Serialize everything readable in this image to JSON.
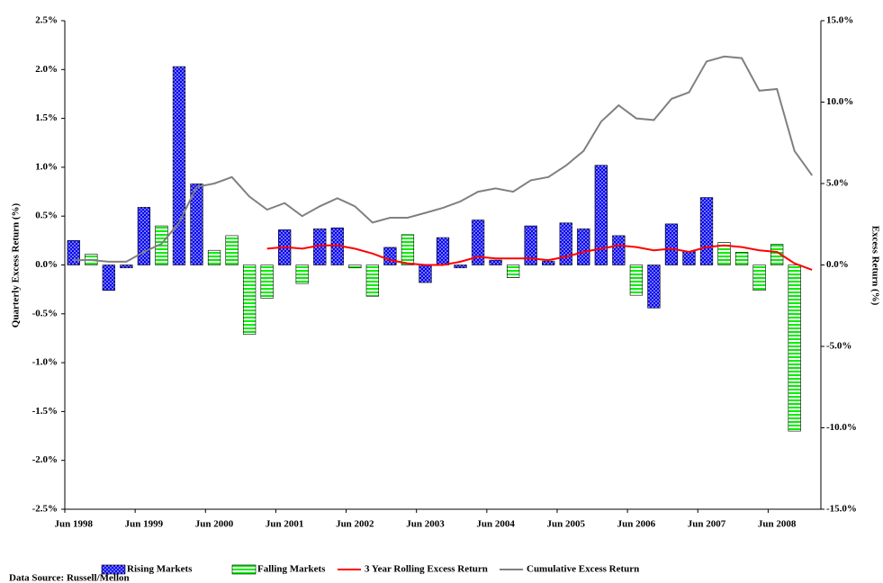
{
  "chart_data": {
    "type": "bar",
    "y_label": "Quarterly Excess Return (%)",
    "y2_label": "Excess Return (%)",
    "source": "Data Source: Russell/Mellon",
    "categories": [
      "Jun 1998",
      null,
      null,
      null,
      "Jun 1999",
      null,
      null,
      null,
      "Jun 2000",
      null,
      null,
      null,
      "Jun 2001",
      null,
      null,
      null,
      "Jun 2002",
      null,
      null,
      null,
      "Jun 2003",
      null,
      null,
      null,
      "Jun 2004",
      null,
      null,
      null,
      "Jun 2005",
      null,
      null,
      null,
      "Jun 2006",
      null,
      null,
      null,
      "Jun 2007",
      null,
      null,
      null,
      "Jun 2008",
      null,
      null
    ],
    "ylim": [
      -2.5,
      2.5
    ],
    "yticks": [
      {
        "value": -2.5,
        "label": "-2.5%"
      },
      {
        "value": -2.0,
        "label": "-2.0%"
      },
      {
        "value": -1.5,
        "label": "-1.5%"
      },
      {
        "value": -1.0,
        "label": "-1.0%"
      },
      {
        "value": -0.5,
        "label": "-0.5%"
      },
      {
        "value": 0,
        "label": "0.0%"
      },
      {
        "value": 0.5,
        "label": "0.5%"
      },
      {
        "value": 1.0,
        "label": "1.0%"
      },
      {
        "value": 1.5,
        "label": "1.5%"
      },
      {
        "value": 2.0,
        "label": "2.0%"
      },
      {
        "value": 2.5,
        "label": "2.5%"
      }
    ],
    "y2lim": [
      -15,
      15
    ],
    "y2ticks": [
      {
        "value": -15,
        "label": "-15.0%"
      },
      {
        "value": -10,
        "label": "-10.0%"
      },
      {
        "value": -5,
        "label": "-5.0%"
      },
      {
        "value": 0,
        "label": "0.0%"
      },
      {
        "value": 5,
        "label": "5.0%"
      },
      {
        "value": 10,
        "label": "10.0%"
      },
      {
        "value": 15,
        "label": "15.0%"
      }
    ],
    "series": [
      {
        "name": "Rising Markets",
        "type": "bar",
        "color": "#0000ee",
        "values": [
          0.25,
          null,
          -0.26,
          -0.03,
          0.59,
          null,
          2.03,
          0.83,
          null,
          null,
          null,
          null,
          0.36,
          null,
          0.37,
          0.38,
          null,
          null,
          0.18,
          null,
          -0.18,
          0.28,
          -0.03,
          0.46,
          0.05,
          null,
          0.4,
          0.04,
          0.43,
          0.37,
          1.02,
          0.3,
          null,
          -0.44,
          0.42,
          0.14,
          0.69,
          null,
          null,
          null,
          null,
          null,
          null
        ]
      },
      {
        "name": "Falling Markets",
        "type": "bar",
        "color": "#00ee00",
        "values": [
          null,
          0.11,
          null,
          null,
          null,
          0.4,
          null,
          null,
          0.15,
          0.3,
          -0.71,
          -0.34,
          null,
          -0.19,
          null,
          null,
          -0.03,
          -0.32,
          null,
          0.31,
          null,
          null,
          null,
          null,
          null,
          -0.13,
          null,
          null,
          null,
          null,
          null,
          null,
          -0.31,
          null,
          null,
          null,
          null,
          0.23,
          0.13,
          -0.26,
          0.21,
          -1.7,
          null
        ]
      },
      {
        "name": "3 Year Rolling Excess Return",
        "type": "line",
        "axis": "y2",
        "color": "#ff0000",
        "values": [
          null,
          null,
          null,
          null,
          null,
          null,
          null,
          null,
          null,
          null,
          null,
          1.0,
          1.1,
          1.0,
          1.2,
          1.2,
          1.0,
          0.7,
          0.3,
          0.1,
          0.0,
          0.0,
          0.2,
          0.5,
          0.4,
          0.4,
          0.4,
          0.3,
          0.5,
          0.8,
          1.0,
          1.2,
          1.1,
          0.9,
          1.0,
          0.8,
          1.1,
          1.2,
          1.1,
          0.9,
          0.8,
          0.1,
          -0.3
        ]
      },
      {
        "name": "Cumulative Excess Return",
        "type": "line",
        "axis": "y2",
        "color": "#808080",
        "values": [
          0.3,
          0.3,
          0.2,
          0.2,
          0.8,
          1.3,
          2.6,
          4.8,
          5.0,
          5.4,
          4.2,
          3.4,
          3.8,
          3.0,
          3.6,
          4.1,
          3.6,
          2.6,
          2.9,
          2.9,
          3.2,
          3.5,
          3.9,
          4.5,
          4.7,
          4.5,
          5.2,
          5.4,
          6.1,
          7.0,
          8.8,
          9.8,
          9.0,
          8.9,
          10.2,
          10.6,
          12.5,
          12.8,
          12.7,
          10.7,
          10.8,
          7.0,
          5.5
        ]
      }
    ]
  }
}
